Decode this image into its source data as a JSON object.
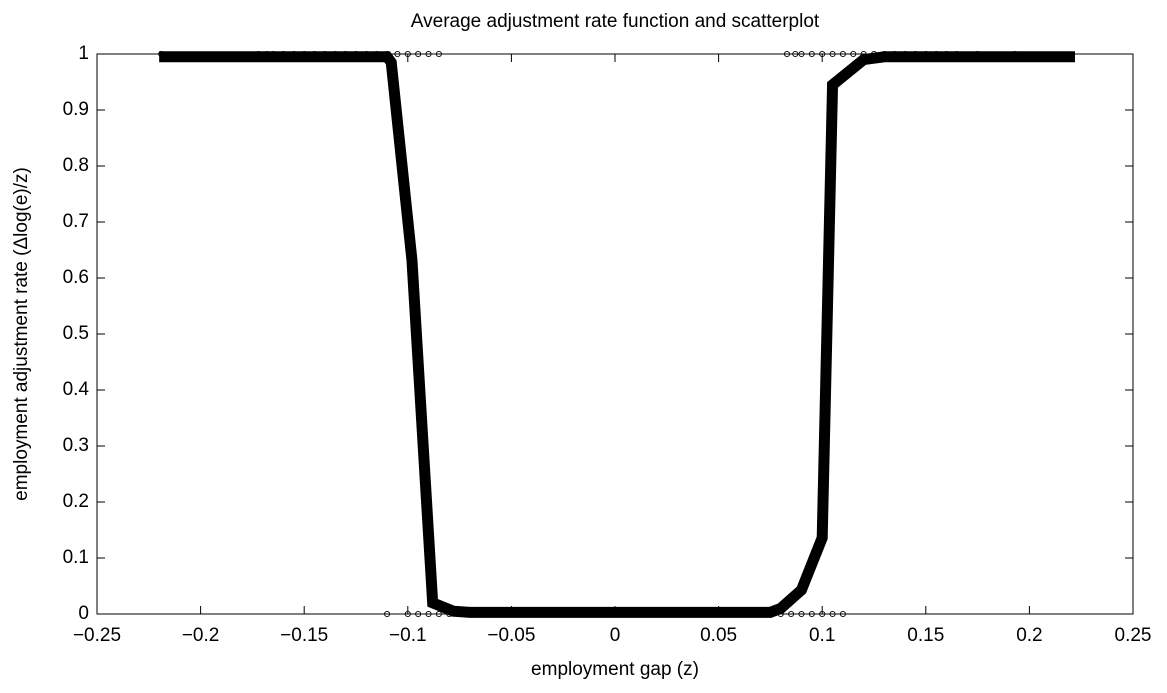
{
  "chart_data": {
    "type": "line",
    "title": "Average adjustment rate function and scatterplot",
    "x_label": "employment gap (z)",
    "y_label": "employment adjustment rate (Δlog(e)/z)",
    "xlim": [
      -0.25,
      0.25
    ],
    "ylim": [
      0,
      1
    ],
    "xticks": [
      {
        "value": -0.25,
        "label": "−0.25"
      },
      {
        "value": -0.2,
        "label": "−0.2"
      },
      {
        "value": -0.15,
        "label": "−0.15"
      },
      {
        "value": -0.1,
        "label": "−0.1"
      },
      {
        "value": -0.05,
        "label": "−0.05"
      },
      0,
      0.05,
      0.1,
      0.15,
      0.2,
      0.25
    ],
    "yticks": [
      0,
      0.1,
      0.2,
      0.3,
      0.4,
      0.5,
      0.6,
      0.7,
      0.8,
      0.9,
      1
    ],
    "series": [
      {
        "type": "scatter",
        "color": "#000000",
        "x": [
          -0.219,
          -0.172,
          -0.168,
          -0.165,
          -0.16,
          -0.155,
          -0.15,
          -0.145,
          -0.14,
          -0.135,
          -0.13,
          -0.125,
          -0.12,
          -0.115,
          -0.11,
          -0.105,
          -0.1,
          -0.095,
          -0.09,
          -0.085,
          0.083,
          0.087,
          0.09,
          0.095,
          0.1,
          0.105,
          0.11,
          0.115,
          0.12,
          0.125,
          0.13,
          0.135,
          0.14,
          0.145,
          0.15,
          0.155,
          0.16,
          0.165,
          0.175,
          0.193,
          -0.11,
          -0.1,
          -0.095,
          -0.09,
          -0.085,
          -0.08,
          -0.075,
          -0.07,
          -0.065,
          -0.06,
          -0.055,
          -0.05,
          -0.045,
          -0.04,
          -0.035,
          -0.03,
          -0.025,
          -0.02,
          -0.015,
          -0.01,
          -0.005,
          0,
          0.005,
          0.01,
          0.015,
          0.02,
          0.025,
          0.03,
          0.035,
          0.04,
          0.045,
          0.05,
          0.055,
          0.06,
          0.065,
          0.07,
          0.075,
          0.08,
          0.085,
          0.09,
          0.095,
          0.1,
          0.105,
          0.11
        ],
        "values": [
          1,
          1,
          1,
          1,
          1,
          1,
          1,
          1,
          1,
          1,
          1,
          1,
          1,
          1,
          1,
          1,
          1,
          1,
          1,
          1,
          1,
          1,
          1,
          1,
          1,
          1,
          1,
          1,
          1,
          1,
          1,
          1,
          1,
          1,
          1,
          1,
          1,
          1,
          1,
          1,
          0,
          0,
          0,
          0,
          0,
          0,
          0,
          0,
          0,
          0,
          0,
          0,
          0,
          0,
          0,
          0,
          0,
          0,
          0,
          0,
          0,
          0,
          0,
          0,
          0,
          0,
          0,
          0,
          0,
          0,
          0,
          0,
          0,
          0,
          0,
          0,
          0,
          0,
          0,
          0,
          0,
          0,
          0,
          0
        ]
      },
      {
        "type": "line",
        "color": "#000000",
        "x": [
          -0.22,
          -0.11,
          -0.108,
          -0.098,
          -0.088,
          -0.078,
          -0.07,
          0.075,
          0.08,
          0.09,
          0.1,
          0.105,
          0.12,
          0.13,
          0.222
        ],
        "values": [
          0.995,
          0.995,
          0.985,
          0.632,
          0.02,
          0.005,
          0.003,
          0.003,
          0.01,
          0.043,
          0.136,
          0.945,
          0.99,
          0.995,
          0.995
        ]
      }
    ]
  }
}
